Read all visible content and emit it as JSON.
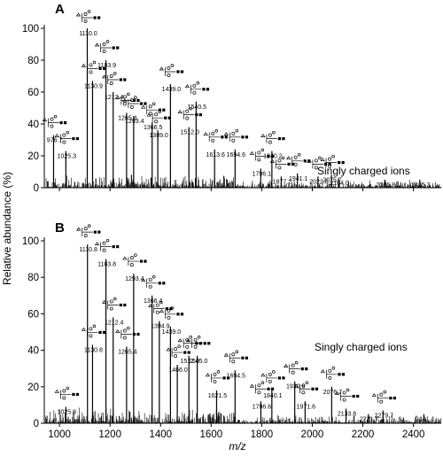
{
  "chart_data": [
    {
      "panel": "A",
      "type": "bar",
      "annotation": "Singly charged ions",
      "xlim": [
        940,
        2510
      ],
      "ylim": [
        0,
        100
      ],
      "yticks": [
        0,
        20,
        40,
        60,
        80,
        100
      ],
      "peaks": [
        {
          "x": 976.7,
          "y": 33,
          "label": "976.7"
        },
        {
          "x": 1025.3,
          "y": 23,
          "label": "1025.3"
        },
        {
          "x": 1110.0,
          "y": 100,
          "label": "1110.0"
        },
        {
          "x": 1130.9,
          "y": 67,
          "label": "1130.9"
        },
        {
          "x": 1183.9,
          "y": 80,
          "label": "1183.9"
        },
        {
          "x": 1212.4,
          "y": 60,
          "label": "1212.4"
        },
        {
          "x": 1265.4,
          "y": 47,
          "label": "1265.4"
        },
        {
          "x": 1293.4,
          "y": 45,
          "label": "1293.4"
        },
        {
          "x": 1366.5,
          "y": 41,
          "label": "1366.5"
        },
        {
          "x": 1389.0,
          "y": 36,
          "label": "1389.0"
        },
        {
          "x": 1439.0,
          "y": 65,
          "label": "1439.0"
        },
        {
          "x": 1512.0,
          "y": 38,
          "label": "1512.0"
        },
        {
          "x": 1540.5,
          "y": 54,
          "label": "1540.5"
        },
        {
          "x": 1613.6,
          "y": 24,
          "label": "1613.6"
        },
        {
          "x": 1694.6,
          "y": 24,
          "label": "1694.6"
        },
        {
          "x": 1796.1,
          "y": 12,
          "label": "1796.1"
        },
        {
          "x": 1840.2,
          "y": 23,
          "label": "1840.2"
        },
        {
          "x": 1877.2,
          "y": 7,
          "label": "1877.2"
        },
        {
          "x": 1941.1,
          "y": 9,
          "label": "1941.1"
        },
        {
          "x": 2022.6,
          "y": 7,
          "label": "2022.6"
        },
        {
          "x": 2075.7,
          "y": 8,
          "label": "2075.7"
        },
        {
          "x": 2104.0,
          "y": 6,
          "label": "2104.0"
        },
        {
          "x": 2286.8,
          "y": 5,
          "label": "2286.8"
        },
        {
          "x": 2425.3,
          "y": 5,
          "label": "2425.3"
        }
      ]
    },
    {
      "panel": "B",
      "type": "bar",
      "annotation": "Singly charged ions",
      "xlabel": "m/z",
      "ylabel": "Relative abundance (%)",
      "xlim": [
        940,
        2510
      ],
      "ylim": [
        0,
        100
      ],
      "xticks": [
        1000,
        1200,
        1400,
        1600,
        1800,
        2000,
        2200,
        2400
      ],
      "yticks": [
        0,
        20,
        40,
        60,
        80,
        100
      ],
      "peaks": [
        {
          "x": 1025.3,
          "y": 9,
          "label": "1025.3"
        },
        {
          "x": 1110.8,
          "y": 98,
          "label": "1110.8"
        },
        {
          "x": 1130.8,
          "y": 43,
          "label": "1130.8"
        },
        {
          "x": 1183.8,
          "y": 90,
          "label": "1183.8"
        },
        {
          "x": 1212.4,
          "y": 58,
          "label": "1212.4"
        },
        {
          "x": 1265.4,
          "y": 42,
          "label": "1265.4"
        },
        {
          "x": 1293.4,
          "y": 82,
          "label": "1293.4"
        },
        {
          "x": 1366.4,
          "y": 70,
          "label": "1366.4"
        },
        {
          "x": 1394.9,
          "y": 56,
          "label": "1394.9"
        },
        {
          "x": 1439.0,
          "y": 53,
          "label": "1439.0"
        },
        {
          "x": 1466.0,
          "y": 32,
          "label": "1466.0"
        },
        {
          "x": 1512.0,
          "y": 37,
          "label": "1512.0"
        },
        {
          "x": 1545.0,
          "y": 37,
          "label": "1545.0"
        },
        {
          "x": 1621.5,
          "y": 18,
          "label": "1621.5"
        },
        {
          "x": 1694.5,
          "y": 29,
          "label": "1694.5"
        },
        {
          "x": 1796.6,
          "y": 12,
          "label": "1796.6"
        },
        {
          "x": 1840.1,
          "y": 18,
          "label": "1840.1"
        },
        {
          "x": 1930.6,
          "y": 23,
          "label": "1930.6"
        },
        {
          "x": 1971.6,
          "y": 12,
          "label": "1971.6"
        },
        {
          "x": 2076.7,
          "y": 20,
          "label": "2076.7"
        },
        {
          "x": 2133.6,
          "y": 8,
          "label": "2133.6"
        },
        {
          "x": 2221.7,
          "y": 5,
          "label": "2221.7"
        },
        {
          "x": 2279.7,
          "y": 7,
          "label": "2279.7"
        },
        {
          "x": 2441.4,
          "y": 5,
          "label": "2441.4"
        }
      ]
    }
  ]
}
